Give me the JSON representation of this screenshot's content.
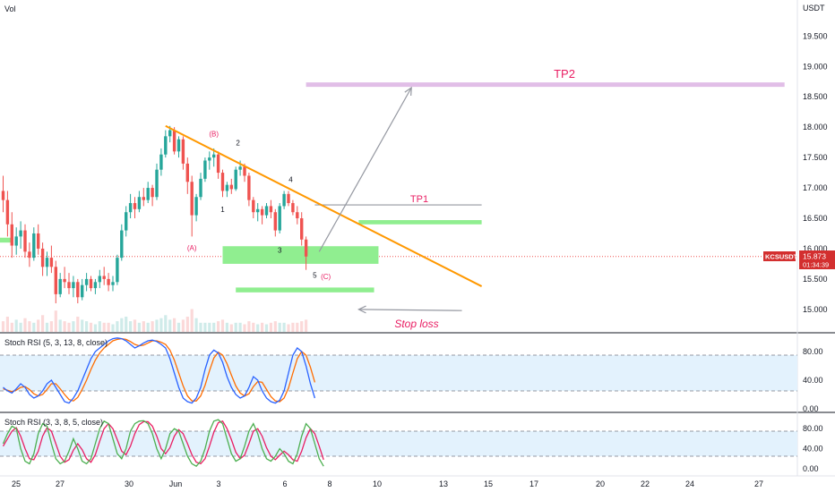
{
  "header": {
    "vol_label": "Vol",
    "currency": "USDT"
  },
  "price_axis": {
    "ticks": [
      "19.500",
      "19.000",
      "18.500",
      "18.000",
      "17.500",
      "17.000",
      "16.500",
      "16.000",
      "15.500",
      "15.000"
    ]
  },
  "price_badge": {
    "symbol": "KCSUSDT",
    "price": "15.873",
    "countdown": "01:34:39"
  },
  "annotations": {
    "tp2": "TP2",
    "tp1": "TP1",
    "stop_loss": "Stop loss",
    "waves": {
      "A": "(A)",
      "B": "(B)",
      "C": "(C)",
      "w1": "1",
      "w2": "2",
      "w3": "3",
      "w4": "4",
      "w5": "5"
    }
  },
  "rsi1": {
    "label": "Stoch RSI (5, 3, 13, 8, close)",
    "ticks": [
      "80.00",
      "40.00",
      "0.00"
    ]
  },
  "rsi2": {
    "label": "Stoch RSI (3, 3, 8, 5, close)",
    "ticks": [
      "80.00",
      "40.00",
      "0.00"
    ]
  },
  "time_axis": {
    "ticks": [
      "25",
      "27",
      "30",
      "Jun",
      "3",
      "6",
      "8",
      "10",
      "13",
      "15",
      "17",
      "20",
      "22",
      "24",
      "27"
    ]
  },
  "colors": {
    "up": "#26a69a",
    "down": "#ef5350",
    "trendline": "#ff9800",
    "tp2": "#e1bee7",
    "zone": "#90ee90",
    "k_line": "#2962ff",
    "d_line": "#ff6d00",
    "k_line2": "#4caf50",
    "d_line2": "#e91e63",
    "band": "#e3f2fd",
    "label_red": "#e91e63"
  },
  "chart_data": {
    "type": "candlestick",
    "price_range": [
      14.65,
      20.0
    ],
    "candles": [
      [
        16.95,
        17.2,
        16.6,
        16.8
      ],
      [
        16.8,
        16.95,
        16.2,
        16.4
      ],
      [
        16.4,
        16.6,
        15.85,
        16.05
      ],
      [
        16.05,
        16.35,
        15.9,
        16.2
      ],
      [
        16.2,
        16.45,
        16.0,
        16.3
      ],
      [
        16.3,
        16.4,
        15.85,
        15.95
      ],
      [
        15.95,
        16.1,
        15.7,
        15.85
      ],
      [
        15.85,
        16.35,
        15.8,
        16.25
      ],
      [
        16.25,
        16.4,
        15.9,
        16.0
      ],
      [
        16.0,
        16.1,
        15.55,
        15.7
      ],
      [
        15.7,
        15.95,
        15.55,
        15.85
      ],
      [
        15.85,
        16.05,
        15.6,
        15.7
      ],
      [
        15.7,
        15.8,
        15.1,
        15.25
      ],
      [
        15.25,
        15.6,
        15.2,
        15.5
      ],
      [
        15.5,
        15.7,
        15.35,
        15.45
      ],
      [
        15.45,
        15.6,
        15.25,
        15.35
      ],
      [
        15.35,
        15.55,
        15.2,
        15.45
      ],
      [
        15.45,
        15.5,
        15.1,
        15.2
      ],
      [
        15.2,
        15.5,
        15.15,
        15.4
      ],
      [
        15.4,
        15.6,
        15.3,
        15.5
      ],
      [
        15.5,
        15.55,
        15.3,
        15.35
      ],
      [
        15.35,
        15.5,
        15.25,
        15.45
      ],
      [
        15.45,
        15.65,
        15.35,
        15.55
      ],
      [
        15.55,
        15.7,
        15.4,
        15.5
      ],
      [
        15.5,
        15.6,
        15.3,
        15.4
      ],
      [
        15.4,
        15.55,
        15.3,
        15.45
      ],
      [
        15.45,
        15.9,
        15.4,
        15.85
      ],
      [
        15.85,
        16.4,
        15.8,
        16.3
      ],
      [
        16.3,
        16.7,
        16.2,
        16.6
      ],
      [
        16.6,
        16.9,
        16.5,
        16.75
      ],
      [
        16.75,
        16.85,
        16.5,
        16.65
      ],
      [
        16.65,
        16.95,
        16.6,
        16.85
      ],
      [
        16.85,
        17.0,
        16.7,
        16.8
      ],
      [
        16.8,
        17.1,
        16.75,
        17.0
      ],
      [
        17.0,
        17.05,
        16.7,
        16.85
      ],
      [
        16.85,
        17.4,
        16.8,
        17.3
      ],
      [
        17.3,
        17.65,
        17.2,
        17.55
      ],
      [
        17.55,
        17.95,
        17.5,
        17.85
      ],
      [
        17.85,
        18.02,
        17.75,
        17.95
      ],
      [
        17.95,
        18.0,
        17.55,
        17.6
      ],
      [
        17.6,
        17.85,
        17.5,
        17.8
      ],
      [
        17.8,
        17.85,
        17.3,
        17.4
      ],
      [
        17.4,
        17.5,
        16.9,
        17.1
      ],
      [
        17.1,
        17.2,
        16.2,
        16.55
      ],
      [
        16.55,
        16.9,
        16.45,
        16.85
      ],
      [
        16.85,
        17.25,
        16.8,
        17.15
      ],
      [
        17.15,
        17.5,
        17.1,
        17.45
      ],
      [
        17.45,
        17.6,
        17.3,
        17.5
      ],
      [
        17.5,
        17.65,
        17.35,
        17.55
      ],
      [
        17.55,
        17.6,
        17.15,
        17.25
      ],
      [
        17.25,
        17.3,
        16.85,
        16.95
      ],
      [
        16.95,
        17.1,
        16.85,
        17.05
      ],
      [
        17.05,
        17.15,
        16.9,
        16.98
      ],
      [
        16.98,
        17.35,
        16.95,
        17.3
      ],
      [
        17.3,
        17.45,
        17.2,
        17.35
      ],
      [
        17.35,
        17.4,
        17.1,
        17.2
      ],
      [
        17.2,
        17.25,
        16.7,
        16.8
      ],
      [
        16.8,
        16.85,
        16.5,
        16.6
      ],
      [
        16.6,
        16.75,
        16.45,
        16.65
      ],
      [
        16.65,
        16.7,
        16.4,
        16.55
      ],
      [
        16.55,
        16.75,
        16.5,
        16.7
      ],
      [
        16.7,
        16.8,
        16.5,
        16.6
      ],
      [
        16.6,
        16.65,
        16.2,
        16.3
      ],
      [
        16.3,
        16.75,
        16.25,
        16.7
      ],
      [
        16.7,
        16.95,
        16.65,
        16.9
      ],
      [
        16.9,
        16.95,
        16.7,
        16.75
      ],
      [
        16.75,
        16.8,
        16.55,
        16.6
      ],
      [
        16.6,
        16.7,
        16.4,
        16.5
      ],
      [
        16.5,
        16.6,
        16.05,
        16.15
      ],
      [
        16.15,
        16.2,
        15.65,
        15.87
      ]
    ],
    "volume": [
      0.35,
      0.5,
      0.3,
      0.4,
      0.3,
      0.45,
      0.35,
      0.3,
      0.4,
      0.55,
      0.3,
      0.35,
      0.7,
      0.4,
      0.35,
      0.3,
      0.35,
      0.5,
      0.4,
      0.35,
      0.3,
      0.25,
      0.35,
      0.3,
      0.3,
      0.25,
      0.35,
      0.45,
      0.5,
      0.35,
      0.4,
      0.3,
      0.35,
      0.3,
      0.35,
      0.4,
      0.45,
      0.55,
      0.4,
      0.45,
      0.3,
      0.4,
      0.5,
      0.75,
      0.45,
      0.3,
      0.3,
      0.3,
      0.3,
      0.35,
      0.4,
      0.3,
      0.25,
      0.3,
      0.3,
      0.25,
      0.35,
      0.3,
      0.25,
      0.3,
      0.25,
      0.3,
      0.35,
      0.3,
      0.3,
      0.25,
      0.3,
      0.3,
      0.35,
      0.4
    ],
    "lines": {
      "trendline": {
        "from": [
          37,
          18.02
        ],
        "to": [
          109,
          15.38
        ]
      },
      "tp1": {
        "from": [
          71,
          16.72
        ],
        "to": [
          109,
          16.72
        ]
      },
      "tp2": {
        "from": [
          69,
          18.7
        ],
        "to": [
          178,
          18.7
        ]
      }
    },
    "zones": [
      {
        "name": "left-marker",
        "x": [
          -1,
          2
        ],
        "y": [
          16.1,
          16.18
        ]
      },
      {
        "name": "buy-zone",
        "x": [
          50,
          85.5
        ],
        "y": [
          15.75,
          16.04
        ]
      },
      {
        "name": "entry-zone",
        "x": [
          81,
          109
        ],
        "y": [
          16.4,
          16.47
        ]
      },
      {
        "name": "lower-zone",
        "x": [
          53,
          84.5
        ],
        "y": [
          15.28,
          15.36
        ]
      }
    ],
    "arrows": {
      "target": {
        "from": [
          72,
          15.95
        ],
        "to": [
          93,
          18.65
        ]
      },
      "stop": {
        "from": [
          104.5,
          14.98
        ],
        "to": [
          81,
          15.0
        ]
      }
    },
    "wave_points": {
      "A": [
        43,
        15.97
      ],
      "B": [
        48,
        17.85
      ],
      "C": [
        73.5,
        15.5
      ],
      "w1": [
        50,
        16.6
      ],
      "w2": [
        53.5,
        17.7
      ],
      "w3": [
        63,
        15.93
      ],
      "w4": [
        65.5,
        17.1
      ],
      "w5": [
        71,
        15.52
      ]
    },
    "stoch1": {
      "k": [
        30,
        25,
        22,
        28,
        35,
        30,
        20,
        15,
        18,
        25,
        35,
        40,
        30,
        20,
        10,
        8,
        15,
        25,
        40,
        55,
        70,
        80,
        85,
        90,
        95,
        98,
        99,
        98,
        95,
        90,
        85,
        88,
        92,
        95,
        96,
        94,
        90,
        85,
        70,
        50,
        30,
        15,
        10,
        8,
        15,
        30,
        55,
        75,
        82,
        78,
        65,
        45,
        30,
        20,
        15,
        18,
        30,
        45,
        40,
        25,
        15,
        10,
        8,
        12,
        25,
        50,
        75,
        85,
        80,
        60,
        35,
        15
      ],
      "d": [
        28,
        26,
        24,
        26,
        30,
        31,
        27,
        21,
        18,
        20,
        27,
        35,
        35,
        28,
        20,
        13,
        11,
        16,
        27,
        40,
        55,
        68,
        78,
        85,
        90,
        95,
        97,
        98,
        97,
        94,
        90,
        88,
        89,
        92,
        95,
        95,
        93,
        90,
        82,
        68,
        50,
        32,
        18,
        11,
        11,
        18,
        33,
        53,
        71,
        79,
        75,
        63,
        47,
        32,
        22,
        18,
        21,
        31,
        38,
        37,
        27,
        17,
        11,
        10,
        15,
        29,
        50,
        70,
        80,
        75,
        58,
        37
      ]
    },
    "stoch2": {
      "k": [
        50,
        70,
        85,
        80,
        40,
        15,
        10,
        30,
        70,
        90,
        85,
        50,
        20,
        10,
        15,
        35,
        60,
        40,
        15,
        10,
        20,
        50,
        80,
        95,
        90,
        60,
        30,
        20,
        40,
        75,
        90,
        95,
        96,
        90,
        70,
        40,
        20,
        40,
        70,
        80,
        75,
        50,
        25,
        10,
        5,
        15,
        40,
        75,
        95,
        98,
        90,
        60,
        30,
        15,
        20,
        45,
        75,
        90,
        70,
        40,
        20,
        15,
        25,
        40,
        30,
        15,
        10,
        30,
        65,
        90,
        80,
        50,
        20,
        5
      ],
      "d": [
        45,
        60,
        75,
        82,
        65,
        40,
        20,
        18,
        35,
        65,
        82,
        75,
        50,
        25,
        13,
        18,
        37,
        50,
        38,
        20,
        13,
        28,
        55,
        80,
        90,
        80,
        58,
        35,
        28,
        45,
        70,
        88,
        94,
        94,
        85,
        65,
        40,
        30,
        42,
        65,
        78,
        70,
        50,
        28,
        13,
        10,
        20,
        45,
        73,
        92,
        95,
        80,
        58,
        33,
        20,
        27,
        50,
        75,
        80,
        65,
        42,
        25,
        18,
        27,
        35,
        28,
        18,
        15,
        35,
        62,
        80,
        70,
        45,
        18
      ]
    }
  }
}
